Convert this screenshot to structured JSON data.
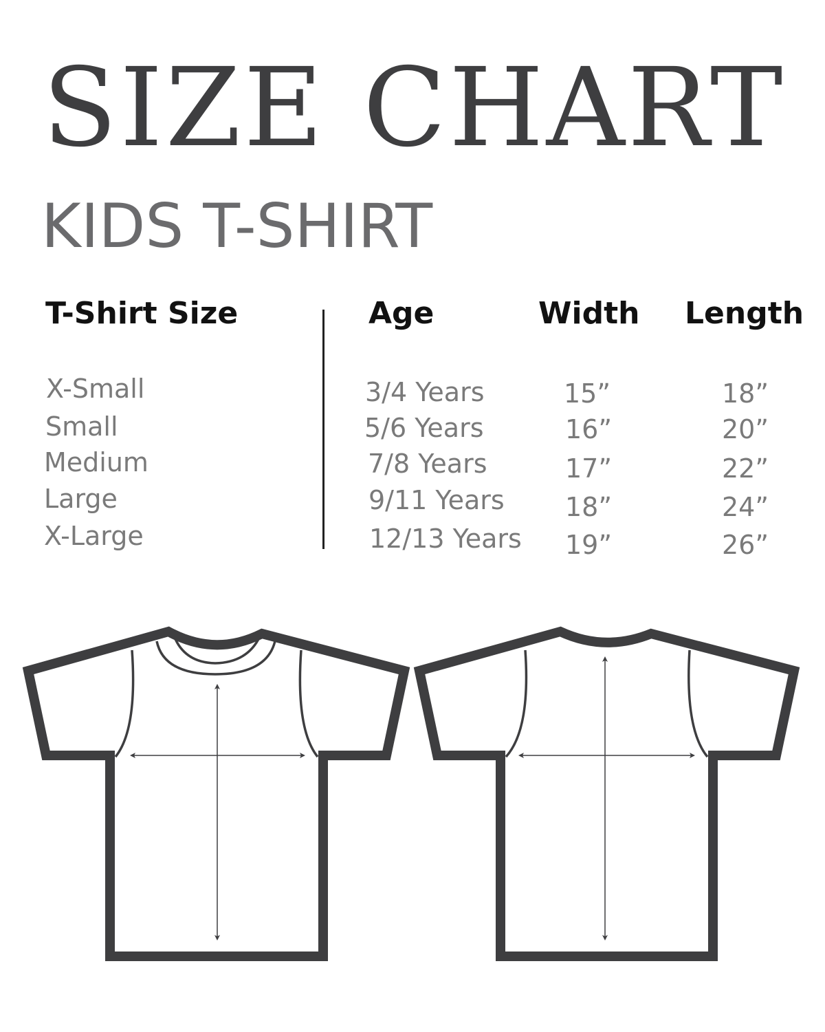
{
  "title": "SIZE CHART",
  "subtitle": "KIDS T-SHIRT",
  "table": {
    "headers": {
      "size": "T-Shirt Size",
      "age": "Age",
      "width": "Width",
      "length": "Length"
    },
    "rows": [
      {
        "size": "X-Small",
        "age": "3/4 Years",
        "width": "15”",
        "length": "18”"
      },
      {
        "size": "Small",
        "age": "5/6 Years",
        "width": "16”",
        "length": "20”"
      },
      {
        "size": "Medium",
        "age": "7/8 Years",
        "width": "17”",
        "length": "22”"
      },
      {
        "size": "Large",
        "age": "9/11 Years",
        "width": "18”",
        "length": "24”"
      },
      {
        "size": "X-Large",
        "age": "12/13 Years",
        "width": "19”",
        "length": "26”"
      }
    ]
  },
  "colors": {
    "outline": "#3e3e40",
    "text_gray": "#7a7a7a"
  }
}
